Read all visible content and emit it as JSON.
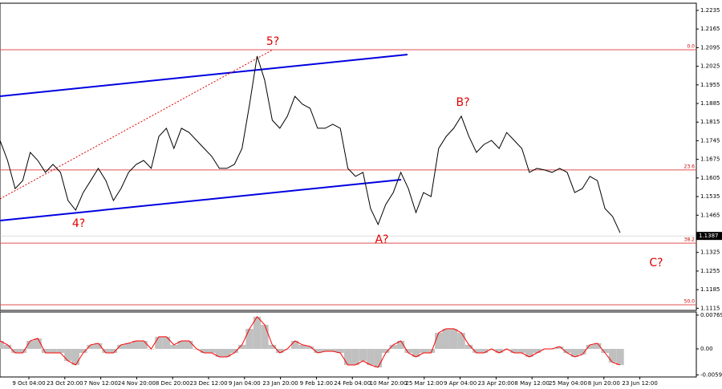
{
  "chart_data": [
    {
      "type": "line",
      "color": "#000000",
      "x_labels": [
        "9 Oct 04:00",
        "23 Oct 20:00",
        "7 Nov 12:00",
        "24 Nov 20:00",
        "8 Dec 20:00",
        "23 Dec 12:00",
        "9 Jan 04:00",
        "23 Jan 20:00",
        "9 Feb 12:00",
        "24 Feb 04:00",
        "10 Mar 20:00",
        "25 Mar 12:00",
        "9 Apr 04:00",
        "23 Apr 20:00",
        "8 May 12:00",
        "25 May 04:00",
        "8 Jun 20:00",
        "23 Jun 12:00"
      ],
      "values": [
        1.1746,
        1.1671,
        1.1565,
        1.1595,
        1.1701,
        1.1671,
        1.1626,
        1.1656,
        1.1626,
        1.152,
        1.1484,
        1.155,
        1.1595,
        1.1641,
        1.1595,
        1.152,
        1.1565,
        1.1626,
        1.1656,
        1.1671,
        1.1641,
        1.1761,
        1.1792,
        1.1716,
        1.1792,
        1.1776,
        1.1746,
        1.1716,
        1.1686,
        1.1641,
        1.1641,
        1.1656,
        1.1716,
        1.1882,
        1.2063,
        1.1973,
        1.1822,
        1.1792,
        1.1837,
        1.1912,
        1.1882,
        1.1867,
        1.1792,
        1.1792,
        1.1807,
        1.1792,
        1.1641,
        1.1611,
        1.1626,
        1.149,
        1.143,
        1.1505,
        1.155,
        1.1626,
        1.1565,
        1.1475,
        1.155,
        1.1535,
        1.1716,
        1.1761,
        1.1792,
        1.1837,
        1.1761,
        1.1701,
        1.1731,
        1.1746,
        1.1716,
        1.1776,
        1.1746,
        1.1716,
        1.1626,
        1.1641,
        1.1635,
        1.1626,
        1.1641,
        1.1626,
        1.155,
        1.1565,
        1.1611,
        1.1595,
        1.149,
        1.146,
        1.1399
      ],
      "ylim": [
        1.1107,
        1.2262
      ],
      "yticks": [
        1.2235,
        1.2165,
        1.2095,
        1.2025,
        1.1955,
        1.1885,
        1.1815,
        1.1745,
        1.1675,
        1.1605,
        1.1535,
        1.1465,
        1.1325,
        1.1255,
        1.1185,
        1.1115
      ],
      "last_price": 1.1387,
      "levels": [
        {
          "value": 1.2087,
          "label": "0.0"
        },
        {
          "value": 1.1635,
          "label": "23.6"
        },
        {
          "value": 1.136,
          "label": "38.2"
        },
        {
          "value": 1.1128,
          "label": "50.0"
        }
      ],
      "annotations": [
        "5?",
        "4?",
        "A?",
        "B?",
        "C?"
      ]
    },
    {
      "type": "histogram",
      "color": "#c0c0c0",
      "line_color": "#ff0000",
      "values": [
        0.00183,
        0.00092,
        -0.00092,
        -0.00092,
        0.00183,
        0.00238,
        -0.00092,
        -0.00092,
        -0.00092,
        -0.00275,
        -0.00366,
        -0.00092,
        0.00092,
        0.00128,
        -0.00092,
        -0.00092,
        0.00092,
        0.00128,
        0.00183,
        0.00183,
        0,
        0.00275,
        0.00275,
        0.00092,
        0.00183,
        0.00183,
        0,
        -0.00092,
        -0.00092,
        -0.00183,
        -0.00183,
        -0.00092,
        0.00092,
        0.00458,
        0.00732,
        0.00549,
        0.00092,
        -0.00092,
        0,
        0.00183,
        0.00092,
        0.00055,
        -0.00092,
        -0.00055,
        -0.00055,
        -0.00092,
        -0.00366,
        -0.00366,
        -0.00275,
        -0.00366,
        -0.00421,
        -0.00092,
        0.00092,
        0.00183,
        -0.00092,
        -0.00183,
        -0.00092,
        -0.00092,
        0.00366,
        0.00458,
        0.00458,
        0.00366,
        0.00092,
        -0.00092,
        -0.00092,
        0,
        -0.00092,
        0,
        -0.00092,
        -0.00092,
        -0.00183,
        -0.00092,
        0,
        0,
        0.00055,
        -0.00092,
        -0.00183,
        -0.00128,
        0.00092,
        0.00128,
        -0.00092,
        -0.00311,
        -0.00366
      ],
      "ylim": [
        -0.0064,
        0.0084
      ],
      "yticks": [
        0.00769,
        {
          "value": 0,
          "label": "0.00"
        },
        -0.00593
      ]
    }
  ]
}
